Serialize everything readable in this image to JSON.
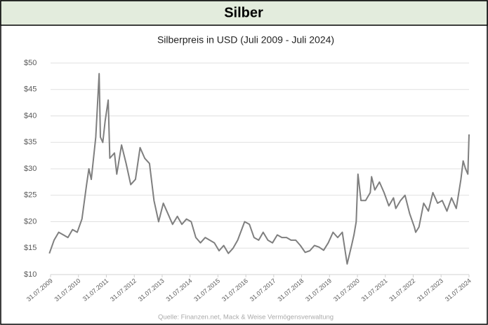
{
  "header": {
    "title": "Silber"
  },
  "chart_data": {
    "type": "line",
    "title": "Silberpreis in USD (Juli 2009 - Juli 2024)",
    "source": "Quelle: Finanzen.net, Mack & Weise Vermögensverwaltung",
    "color": "#7f7f7f",
    "grid": true,
    "x": [
      "15.07.2009",
      "15.09.2009",
      "15.11.2009",
      "15.01.2010",
      "15.03.2010",
      "15.05.2010",
      "15.07.2010",
      "15.09.2010",
      "15.11.2010",
      "15.12.2010",
      "15.01.2011",
      "15.03.2011",
      "28.04.2011",
      "15.05.2011",
      "15.06.2011",
      "15.07.2011",
      "25.08.2011",
      "15.09.2011",
      "15.11.2011",
      "15.12.2011",
      "15.02.2012",
      "15.04.2012",
      "15.06.2012",
      "15.08.2012",
      "15.10.2012",
      "15.12.2012",
      "15.02.2013",
      "15.04.2013",
      "15.06.2013",
      "15.08.2013",
      "15.10.2013",
      "15.12.2013",
      "15.02.2014",
      "15.04.2014",
      "15.06.2014",
      "15.08.2014",
      "15.10.2014",
      "15.12.2014",
      "15.02.2015",
      "15.04.2015",
      "15.06.2015",
      "15.08.2015",
      "15.10.2015",
      "15.12.2015",
      "15.02.2016",
      "15.04.2016",
      "15.07.2016",
      "15.09.2016",
      "15.11.2016",
      "15.01.2017",
      "15.03.2017",
      "15.05.2017",
      "15.07.2017",
      "15.09.2017",
      "15.11.2017",
      "15.01.2018",
      "15.03.2018",
      "15.05.2018",
      "15.07.2018",
      "15.09.2018",
      "15.11.2018",
      "15.01.2019",
      "15.03.2019",
      "15.05.2019",
      "15.07.2019",
      "15.09.2019",
      "15.11.2019",
      "15.01.2020",
      "18.03.2020",
      "15.05.2020",
      "15.06.2020",
      "15.07.2020",
      "07.08.2020",
      "15.09.2020",
      "15.11.2020",
      "15.01.2021",
      "01.02.2021",
      "15.03.2021",
      "15.05.2021",
      "15.07.2021",
      "15.09.2021",
      "15.11.2021",
      "15.12.2021",
      "15.02.2022",
      "15.04.2022",
      "15.06.2022",
      "15.08.2022",
      "01.09.2022",
      "15.10.2022",
      "15.12.2022",
      "15.02.2023",
      "15.04.2023",
      "15.06.2023",
      "15.08.2023",
      "15.10.2023",
      "15.12.2023",
      "15.02.2024",
      "15.04.2024",
      "15.05.2024",
      "15.06.2024",
      "15.07.2024",
      "31.07.2024"
    ],
    "values": [
      14,
      16.5,
      18,
      17.5,
      17,
      18.5,
      18,
      20.5,
      27,
      30,
      28,
      36,
      48,
      36,
      35,
      39,
      43,
      32,
      33,
      29,
      34.5,
      31,
      27,
      28,
      34,
      32,
      31,
      24,
      20,
      23.5,
      21.5,
      19.5,
      21,
      19.5,
      20.5,
      20,
      17,
      16,
      17,
      16.5,
      16,
      14.5,
      15.5,
      14,
      15,
      16.5,
      20,
      19.5,
      17,
      16.5,
      18,
      16.5,
      16,
      17.5,
      17,
      17,
      16.5,
      16.5,
      15.5,
      14.2,
      14.5,
      15.5,
      15.2,
      14.6,
      16,
      18,
      17,
      18,
      12,
      15.5,
      17.5,
      20,
      29,
      24,
      24,
      25.5,
      28.5,
      26,
      27.5,
      25.5,
      23,
      24.5,
      22.5,
      24,
      25,
      21.5,
      19,
      18,
      19,
      23.5,
      22,
      25.5,
      23.5,
      24,
      22,
      24.5,
      22.5,
      28,
      31.5,
      30,
      29,
      36.5
    ],
    "xlim": [
      "31.07.2009",
      "31.07.2024"
    ],
    "xticks": [
      "31.07.2009",
      "31.07.2010",
      "31.07.2011",
      "31.07.2012",
      "31.07.2013",
      "31.07.2014",
      "31.07.2015",
      "31.07.2016",
      "31.07.2017",
      "31.07.2018",
      "31.07.2019",
      "31.07.2020",
      "31.07.2021",
      "31.07.2022",
      "31.07.2023",
      "31.07.2024"
    ],
    "ylim": [
      10,
      50
    ],
    "yticks": [
      {
        "value": 10,
        "label": "$10"
      },
      {
        "value": 15,
        "label": "$15"
      },
      {
        "value": 20,
        "label": "$20"
      },
      {
        "value": 25,
        "label": "$25"
      },
      {
        "value": 30,
        "label": "$30"
      },
      {
        "value": 35,
        "label": "$35"
      },
      {
        "value": 40,
        "label": "$40"
      },
      {
        "value": 45,
        "label": "$45"
      },
      {
        "value": 50,
        "label": "$50"
      }
    ]
  }
}
